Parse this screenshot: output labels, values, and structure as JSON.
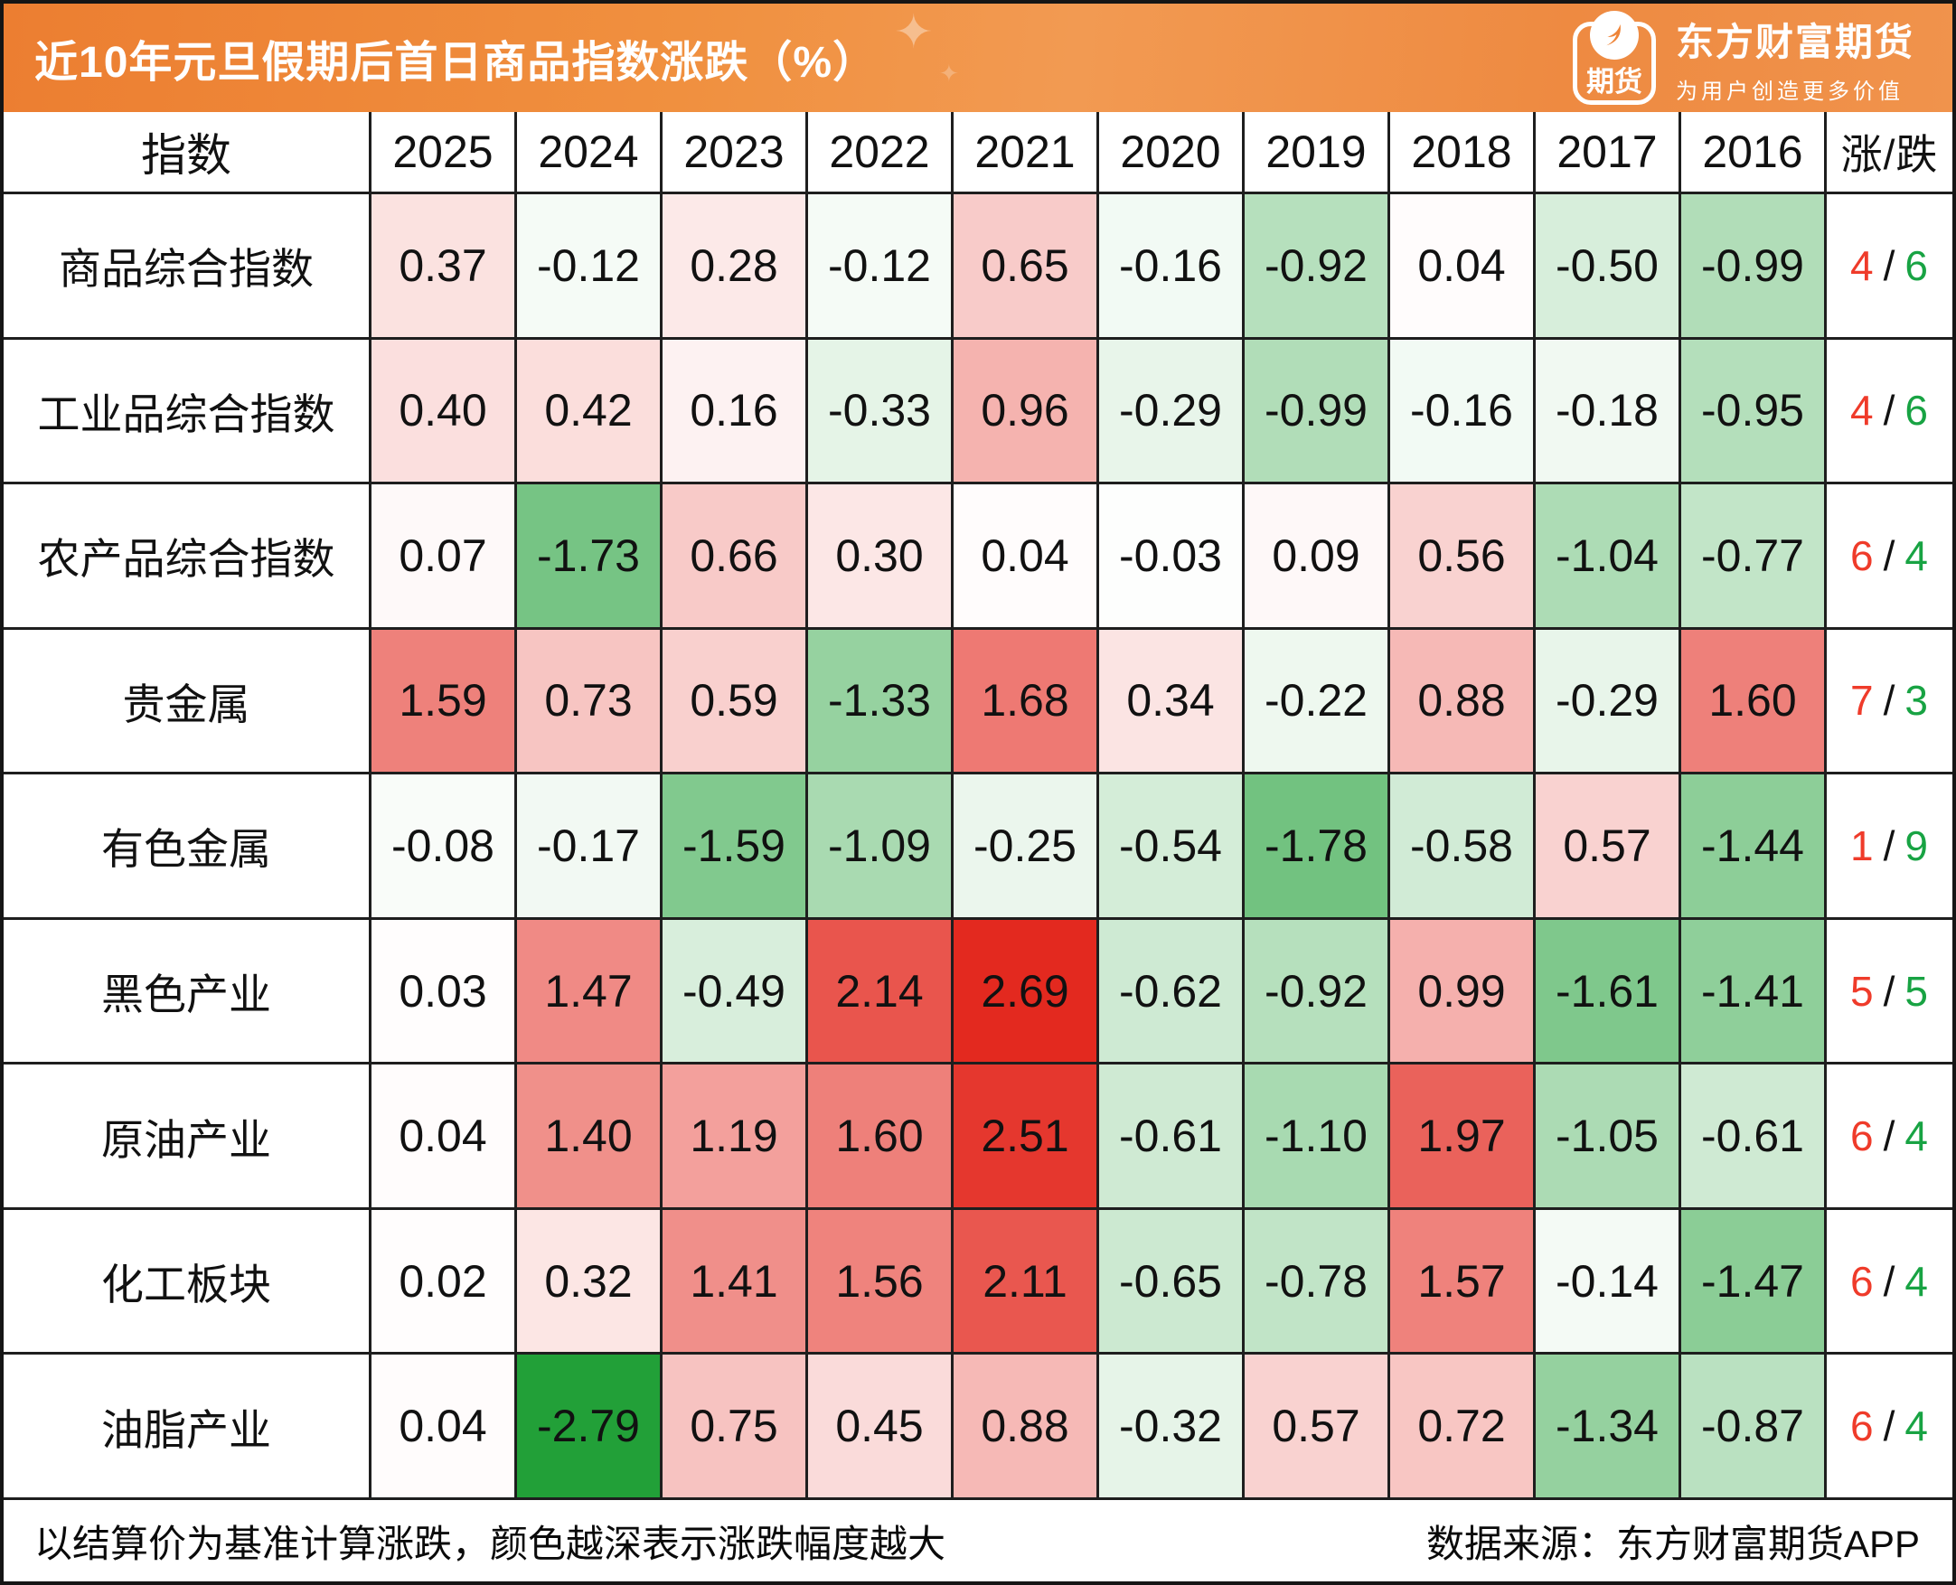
{
  "header": {
    "title": "近10年元旦假期后首日商品指数涨跌（%）",
    "brand": {
      "icon_text": "期货",
      "name": "东方财富期货",
      "slogan": "为用户创造更多价值",
      "banner_color": "#ee8a41"
    }
  },
  "chart_data": {
    "type": "heatmap",
    "title": "近10年元旦假期后首日商品指数涨跌（%）",
    "index_header": "指数",
    "columns": [
      "2025",
      "2024",
      "2023",
      "2022",
      "2021",
      "2020",
      "2019",
      "2018",
      "2017",
      "2016"
    ],
    "updown_header": "涨/跌",
    "rows": [
      {
        "label": "商品综合指数",
        "values": [
          0.37,
          -0.12,
          0.28,
          -0.12,
          0.65,
          -0.16,
          -0.92,
          0.04,
          -0.5,
          -0.99
        ],
        "up": 4,
        "down": 6
      },
      {
        "label": "工业品综合指数",
        "values": [
          0.4,
          0.42,
          0.16,
          -0.33,
          0.96,
          -0.29,
          -0.99,
          -0.16,
          -0.18,
          -0.95
        ],
        "up": 4,
        "down": 6
      },
      {
        "label": "农产品综合指数",
        "values": [
          0.07,
          -1.73,
          0.66,
          0.3,
          0.04,
          -0.03,
          0.09,
          0.56,
          -1.04,
          -0.77
        ],
        "up": 6,
        "down": 4
      },
      {
        "label": "贵金属",
        "values": [
          1.59,
          0.73,
          0.59,
          -1.33,
          1.68,
          0.34,
          -0.22,
          0.88,
          -0.29,
          1.6
        ],
        "up": 7,
        "down": 3
      },
      {
        "label": "有色金属",
        "values": [
          -0.08,
          -0.17,
          -1.59,
          -1.09,
          -0.25,
          -0.54,
          -1.78,
          -0.58,
          0.57,
          -1.44
        ],
        "up": 1,
        "down": 9
      },
      {
        "label": "黑色产业",
        "values": [
          0.03,
          1.47,
          -0.49,
          2.14,
          2.69,
          -0.62,
          -0.92,
          0.99,
          -1.61,
          -1.41
        ],
        "up": 5,
        "down": 5
      },
      {
        "label": "原油产业",
        "values": [
          0.04,
          1.4,
          1.19,
          1.6,
          2.51,
          -0.61,
          -1.1,
          1.97,
          -1.05,
          -0.61
        ],
        "up": 6,
        "down": 4
      },
      {
        "label": "化工板块",
        "values": [
          0.02,
          0.32,
          1.41,
          1.56,
          2.11,
          -0.65,
          -0.78,
          1.57,
          -0.14,
          -1.47
        ],
        "up": 6,
        "down": 4
      },
      {
        "label": "油脂产业",
        "values": [
          0.04,
          -2.79,
          0.75,
          0.45,
          0.88,
          -0.32,
          0.57,
          0.72,
          -1.34,
          -0.87
        ],
        "up": 6,
        "down": 4
      }
    ],
    "color_scale": {
      "positive_max_color": "#e3291f",
      "negative_max_color": "#22a038",
      "positive_max": 2.69,
      "negative_max": 2.79,
      "up_count_color": "#ef3b2a",
      "down_count_color": "#18a343"
    },
    "legend_note": "颜色越深表示涨跌幅度越大"
  },
  "footer": {
    "note": "以结算价为基准计算涨跌，颜色越深表示涨跌幅度越大",
    "source": "数据来源：东方财富期货APP"
  }
}
